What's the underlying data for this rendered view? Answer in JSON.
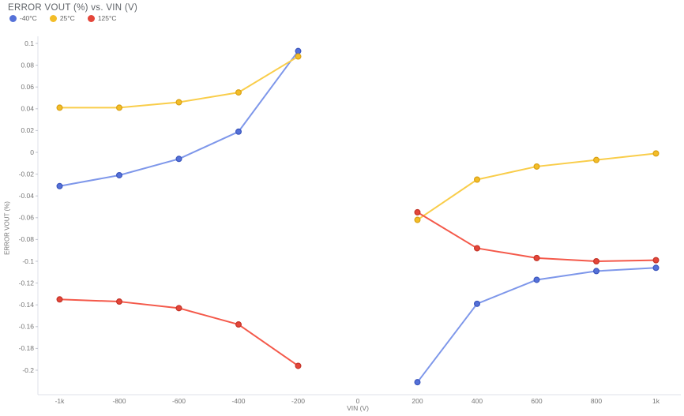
{
  "chart_data": {
    "type": "line",
    "title": "ERROR VOUT (%) vs. VIN (V)",
    "xlabel": "VIN (V)",
    "ylabel": "ERROR VOUT (%)",
    "legend_position": "top-left",
    "grid": false,
    "background": "#ffffff",
    "axis_line_color": "#dfe1ea",
    "tick_color": "#c2c5cf",
    "label_color": "#757575",
    "xlim": [
      -1075,
      1085
    ],
    "ylim": [
      -0.2225,
      0.106
    ],
    "x_tick_labels": [
      "-1k",
      "-800",
      "-600",
      "-400",
      "-200",
      "0",
      "200",
      "400",
      "600",
      "800",
      "1k"
    ],
    "x_tick_values": [
      -1000,
      -800,
      -600,
      -400,
      -200,
      0,
      200,
      400,
      600,
      800,
      1000
    ],
    "y_tick_labels": [
      "0.1",
      "0.08",
      "0.06",
      "0.04",
      "0.02",
      "0",
      "-0.02",
      "-0.04",
      "-0.06",
      "-0.08",
      "-0.1",
      "-0.12",
      "-0.14",
      "-0.16",
      "-0.18",
      "-0.2"
    ],
    "y_tick_values": [
      0.1,
      0.08,
      0.06,
      0.04,
      0.02,
      0,
      -0.02,
      -0.04,
      -0.06,
      -0.08,
      -0.1,
      -0.12,
      -0.14,
      -0.16,
      -0.18,
      -0.2
    ],
    "series": [
      {
        "name": "-40°C",
        "marker_color": "#5571d8",
        "marker_stroke": "#3a55bd",
        "line_color": "#7e97ea",
        "segments": [
          [
            [
              -1000,
              -0.031
            ],
            [
              -800,
              -0.021
            ],
            [
              -600,
              -0.006
            ],
            [
              -400,
              0.019
            ],
            [
              -200,
              0.093
            ]
          ],
          [
            [
              200,
              -0.211
            ],
            [
              400,
              -0.139
            ],
            [
              600,
              -0.117
            ],
            [
              800,
              -0.109
            ],
            [
              1000,
              -0.106
            ]
          ]
        ]
      },
      {
        "name": "25°C",
        "marker_color": "#f3bd28",
        "marker_stroke": "#d9a013",
        "line_color": "#f9cd4a",
        "segments": [
          [
            [
              -1000,
              0.041
            ],
            [
              -800,
              0.041
            ],
            [
              -600,
              0.046
            ],
            [
              -400,
              0.055
            ],
            [
              -200,
              0.088
            ]
          ],
          [
            [
              200,
              -0.062
            ],
            [
              400,
              -0.025
            ],
            [
              600,
              -0.013
            ],
            [
              800,
              -0.007
            ],
            [
              1000,
              -0.001
            ]
          ]
        ]
      },
      {
        "name": "125°C",
        "marker_color": "#e4463a",
        "marker_stroke": "#c33327",
        "line_color": "#f4594a",
        "segments": [
          [
            [
              -1000,
              -0.135
            ],
            [
              -800,
              -0.137
            ],
            [
              -600,
              -0.143
            ],
            [
              -400,
              -0.158
            ],
            [
              -200,
              -0.196
            ]
          ],
          [
            [
              200,
              -0.055
            ],
            [
              400,
              -0.088
            ],
            [
              600,
              -0.097
            ],
            [
              800,
              -0.1
            ],
            [
              1000,
              -0.099
            ]
          ]
        ]
      }
    ]
  }
}
